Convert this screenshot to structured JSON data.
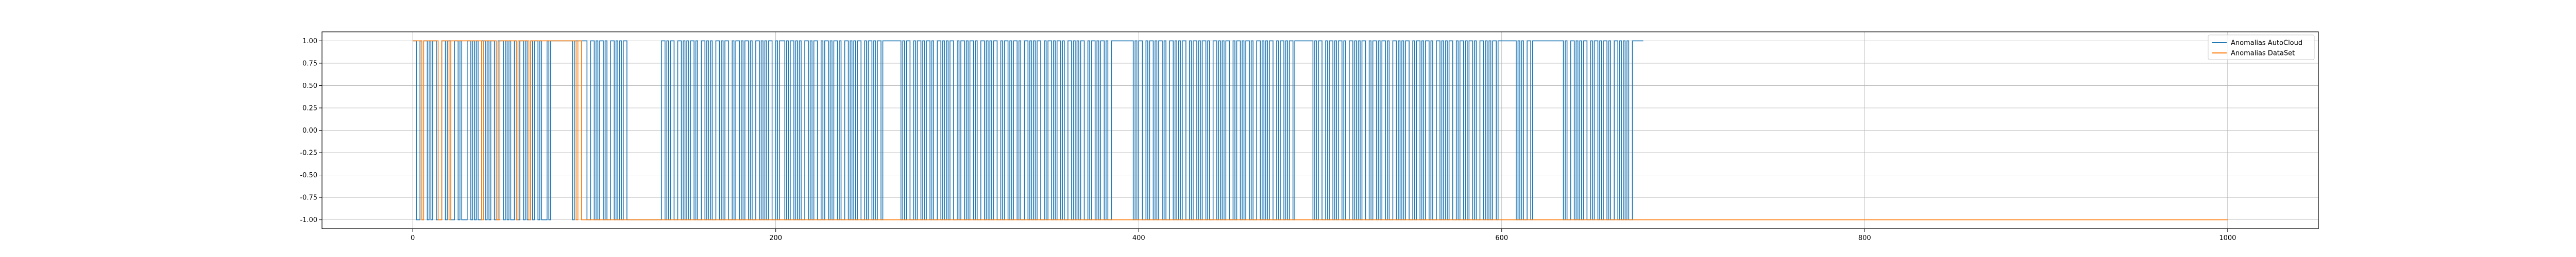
{
  "chart_data": {
    "type": "line",
    "title": "",
    "xlabel": "",
    "ylabel": "",
    "xlim": [
      -50,
      1050
    ],
    "ylim": [
      -1.1,
      1.1
    ],
    "xticks": [
      0,
      200,
      400,
      600,
      800,
      1000
    ],
    "yticks": [
      1.0,
      0.75,
      0.5,
      0.25,
      0.0,
      -0.25,
      -0.5,
      -0.75,
      -1.0
    ],
    "grid": true,
    "legend_position": "top-right",
    "series": [
      {
        "name": "Anomalias AutoCloud",
        "color": "#1f77b4",
        "x_start": 0,
        "values_on_interval": true,
        "step_pattern": [
          1,
          1,
          -1,
          -1,
          1,
          -1,
          1,
          1,
          -1,
          1,
          -1,
          1,
          1,
          -1,
          -1,
          -1,
          1,
          1,
          -1,
          1,
          1,
          -1,
          -1,
          1,
          1,
          -1,
          1,
          -1,
          -1,
          -1,
          1,
          1,
          -1,
          1,
          -1,
          1,
          -1,
          -1,
          1,
          1,
          -1,
          1,
          -1,
          1,
          1,
          -1,
          -1,
          1,
          1,
          1,
          -1,
          1,
          -1,
          1,
          -1,
          -1,
          1,
          -1,
          -1,
          1,
          1,
          -1,
          1,
          -1,
          -1,
          1,
          -1,
          1,
          1,
          -1,
          1,
          -1,
          -1,
          -1,
          1,
          -1,
          1,
          1,
          1,
          1,
          1,
          1,
          1,
          1,
          1,
          1,
          1,
          1,
          -1,
          1,
          1,
          1,
          1,
          1,
          1,
          1,
          -1,
          -1,
          1,
          1,
          -1,
          1,
          -1,
          1,
          1,
          -1,
          1,
          -1,
          -1,
          1,
          1,
          -1,
          1,
          -1,
          1,
          -1,
          1,
          1,
          -1,
          -1,
          -1,
          -1,
          -1,
          -1,
          -1,
          -1,
          -1,
          -1,
          -1,
          -1,
          -1,
          -1,
          -1,
          -1,
          -1,
          -1,
          -1,
          1,
          1,
          -1,
          1,
          -1,
          1,
          1,
          -1,
          -1,
          1,
          1,
          -1,
          1,
          -1,
          1,
          -1,
          1,
          1,
          -1,
          1,
          -1,
          -1,
          1,
          1,
          -1,
          1,
          -1,
          1,
          -1,
          -1,
          1,
          1,
          -1,
          1,
          -1,
          1,
          1,
          -1,
          -1,
          1,
          -1,
          1,
          1,
          -1,
          1,
          -1,
          1,
          1,
          -1,
          1,
          -1,
          -1,
          1,
          1,
          -1,
          1,
          -1,
          1,
          -1,
          1,
          1,
          -1,
          -1,
          1,
          -1,
          1,
          1,
          1,
          -1,
          1,
          -1,
          1,
          1,
          -1,
          1,
          -1,
          1,
          -1,
          -1,
          1,
          1,
          -1,
          1,
          -1,
          1,
          1,
          -1,
          -1,
          1,
          -1,
          1,
          1,
          -1,
          1,
          -1,
          1,
          1,
          -1,
          1,
          -1,
          -1,
          1,
          1,
          -1,
          1,
          -1,
          1,
          -1,
          1,
          1,
          -1,
          -1,
          1,
          -1,
          1,
          1,
          -1,
          1,
          -1,
          1,
          1,
          -1,
          1,
          1,
          1,
          1,
          1,
          1,
          1,
          1,
          1,
          1,
          -1,
          1,
          -1,
          1,
          1,
          -1,
          -1,
          1,
          -1,
          1,
          1,
          -1,
          1,
          -1,
          1,
          1,
          -1,
          1,
          -1,
          -1,
          1,
          1,
          -1,
          1,
          -1,
          1,
          -1,
          1,
          1,
          -1,
          -1,
          1,
          -1,
          1,
          1,
          -1,
          1,
          -1,
          1,
          1,
          -1,
          1,
          -1,
          -1,
          1,
          1,
          -1,
          1,
          -1,
          1,
          -1,
          1,
          1,
          -1,
          -1,
          1,
          -1,
          1,
          1,
          -1,
          1,
          -1,
          1,
          1,
          -1,
          1,
          -1,
          -1,
          1,
          1,
          -1,
          1,
          -1,
          1,
          -1,
          1,
          1,
          -1,
          -1,
          1,
          -1,
          1,
          1,
          -1,
          1,
          -1,
          1,
          1,
          -1,
          1,
          -1,
          -1,
          1,
          1,
          -1,
          1,
          -1,
          1,
          -1,
          1,
          1,
          -1,
          -1,
          1,
          -1,
          1,
          1,
          -1,
          1,
          -1,
          1,
          1,
          -1,
          1,
          -1,
          -1,
          1,
          1,
          1,
          1,
          1,
          1,
          1,
          1,
          1,
          1,
          1,
          1,
          -1,
          1,
          -1,
          1,
          1,
          -1,
          -1,
          1,
          -1,
          1,
          1,
          -1,
          1,
          -1,
          1,
          1,
          -1,
          1,
          -1,
          -1,
          1,
          1,
          -1,
          1,
          -1,
          1,
          -1,
          1,
          1,
          -1,
          -1,
          1,
          -1,
          1,
          1,
          -1,
          1,
          -1,
          1,
          1,
          -1,
          1,
          -1,
          -1,
          1,
          1,
          -1,
          1,
          -1,
          1,
          -1,
          1,
          1,
          -1,
          -1,
          1,
          -1,
          1,
          1,
          -1,
          1,
          -1,
          1,
          1,
          -1,
          1,
          -1,
          -1,
          1,
          1,
          -1,
          1,
          -1,
          1,
          -1,
          1,
          1,
          -1,
          -1,
          1,
          -1,
          1,
          1,
          -1,
          1,
          -1,
          1,
          1,
          -1,
          1,
          1,
          1,
          1,
          1,
          1,
          1,
          1,
          1,
          1,
          -1,
          1,
          -1,
          1,
          1,
          -1,
          -1,
          1,
          -1,
          1,
          1,
          -1,
          1,
          -1,
          1,
          1,
          -1,
          1,
          -1,
          -1,
          1,
          1,
          -1,
          1,
          -1,
          1,
          -1,
          1,
          1,
          -1,
          -1,
          1,
          -1,
          1,
          1,
          -1,
          1,
          -1,
          1,
          1,
          -1,
          1,
          -1,
          -1,
          1,
          1,
          -1,
          1,
          -1,
          1,
          -1,
          1,
          1,
          -1,
          -1,
          1,
          -1,
          1,
          1,
          -1,
          1,
          -1,
          1,
          1,
          -1,
          1,
          -1,
          -1,
          1,
          1,
          -1,
          1,
          -1,
          1,
          -1,
          1,
          1,
          -1,
          -1,
          1,
          -1,
          1,
          1,
          -1,
          1,
          -1,
          1,
          1,
          -1,
          1,
          -1,
          -1,
          1,
          1,
          -1,
          1,
          -1,
          1,
          -1,
          1,
          1,
          -1,
          1,
          1,
          1,
          1,
          1,
          1,
          1,
          1,
          1,
          1,
          -1,
          1,
          -1,
          1,
          -1,
          -1,
          1,
          1,
          -1,
          1,
          1,
          1,
          1,
          1,
          1,
          1,
          1,
          1,
          1,
          1,
          1,
          1,
          1,
          1,
          1,
          1,
          -1,
          1,
          -1,
          -1,
          1,
          1,
          -1,
          1,
          -1,
          1,
          -1,
          1,
          1,
          -1,
          -1,
          1,
          -1,
          1,
          1,
          -1,
          1,
          -1,
          1,
          1,
          -1,
          1,
          -1,
          -1,
          1,
          1,
          -1,
          1,
          -1,
          1,
          -1,
          1,
          -1,
          -1,
          1,
          1,
          1,
          1,
          1,
          1
        ]
      },
      {
        "name": "Anomalias DataSet",
        "color": "#ff7f0e",
        "x_start": 0,
        "values_on_interval": true,
        "step_pattern": [
          1,
          1,
          1,
          1,
          1,
          -1,
          1,
          1,
          1,
          1,
          1,
          1,
          1,
          1,
          -1,
          -1,
          1,
          1,
          1,
          1,
          -1,
          1,
          1,
          1,
          1,
          1,
          1,
          1,
          1,
          1,
          1,
          1,
          1,
          1,
          1,
          1,
          1,
          1,
          -1,
          1,
          1,
          1,
          1,
          1,
          1,
          1,
          -1,
          -1,
          1,
          1,
          1,
          1,
          1,
          1,
          1,
          1,
          1,
          -1,
          1,
          1,
          1,
          1,
          1,
          1,
          -1,
          1,
          1,
          1,
          1,
          1,
          1,
          1,
          1,
          1,
          1,
          1,
          1,
          1,
          1,
          1,
          1,
          1,
          1,
          1,
          1,
          1,
          1,
          1,
          1,
          1,
          -1,
          1,
          1,
          -1,
          -1,
          -1,
          -1,
          -1,
          -1,
          -1,
          -1,
          -1,
          -1,
          -1,
          -1,
          -1,
          -1,
          -1,
          -1,
          -1,
          -1,
          -1,
          -1,
          -1,
          -1,
          -1,
          -1,
          -1,
          -1,
          -1,
          -1,
          -1
        ],
        "tail_value": -1,
        "tail_end": 1000
      }
    ]
  }
}
